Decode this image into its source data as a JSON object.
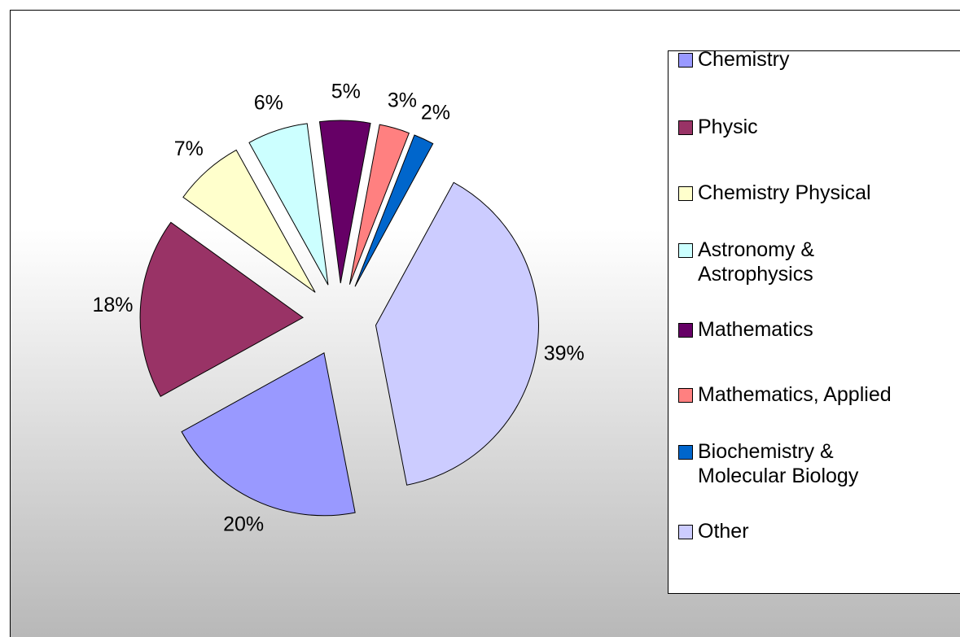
{
  "chart_data": {
    "type": "pie",
    "categories": [
      "Chemistry",
      "Physic",
      "Chemistry Physical",
      "Astronomy & Astrophysics",
      "Mathematics",
      "Mathematics, Applied",
      "Biochemistry & Molecular Biology",
      "Other"
    ],
    "values": [
      20,
      18,
      7,
      6,
      5,
      3,
      2,
      39
    ],
    "value_labels": [
      "20%",
      "18%",
      "7%",
      "6%",
      "5%",
      "3%",
      "2%",
      "39%"
    ],
    "colors": [
      "#9999ff",
      "#993366",
      "#ffffcc",
      "#ccffff",
      "#660066",
      "#ff8080",
      "#0066cc",
      "#ccccff"
    ],
    "legend": "right"
  }
}
